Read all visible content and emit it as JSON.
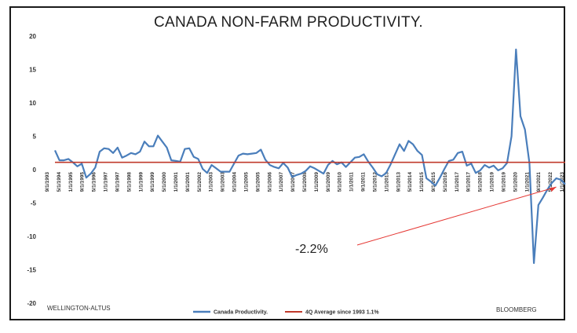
{
  "chart_data": {
    "type": "line",
    "title": "CANADA NON-FARM PRODUCTIVITY.",
    "ylim": [
      -20,
      20
    ],
    "yticks": [
      "20",
      "15",
      "10",
      "5",
      "0",
      "-5",
      "-10",
      "-15",
      "-20"
    ],
    "x_tick_labels": [
      "9/1/1993",
      "5/1/1994",
      "1/1/1995",
      "9/1/1995",
      "5/1/1996",
      "1/1/1997",
      "9/1/1997",
      "5/1/1998",
      "1/1/1999",
      "9/1/1999",
      "5/1/2000",
      "1/1/2001",
      "9/1/2001",
      "5/1/2002",
      "1/1/2003",
      "9/1/2003",
      "5/1/2004",
      "1/1/2005",
      "9/1/2005",
      "5/1/2006",
      "1/1/2007",
      "9/1/2007",
      "5/1/2008",
      "1/1/2009",
      "9/1/2009",
      "5/1/2010",
      "1/1/2011",
      "9/1/2011",
      "5/1/2012",
      "1/1/2013",
      "9/1/2013",
      "5/1/2014",
      "1/1/2015",
      "9/1/2015",
      "5/1/2016",
      "1/1/2017",
      "9/1/2017",
      "5/1/2018",
      "1/1/2019",
      "9/1/2019",
      "5/1/2020",
      "1/1/2021",
      "9/1/2021",
      "5/1/2022",
      "1/1/2023"
    ],
    "series": [
      {
        "name": "Canada Productivity.",
        "color": "#4a7ebb",
        "values": [
          2.9,
          1.4,
          1.4,
          1.6,
          1.1,
          0.5,
          0.9,
          -1.2,
          -0.6,
          0.3,
          2.7,
          3.2,
          3.1,
          2.5,
          3.3,
          1.8,
          2.1,
          2.5,
          2.3,
          2.7,
          4.2,
          3.5,
          3.5,
          5.1,
          4.2,
          3.3,
          1.4,
          1.3,
          1.2,
          3.1,
          3.2,
          1.9,
          1.6,
          0.1,
          -0.5,
          0.7,
          0.2,
          -0.3,
          -0.3,
          -0.3,
          0.9,
          2.1,
          2.4,
          2.3,
          2.4,
          2.5,
          3.0,
          1.5,
          0.7,
          0.4,
          0.2,
          1.0,
          0.3,
          -1.1,
          -0.8,
          -0.6,
          -0.2,
          0.5,
          0.2,
          -0.2,
          -0.6,
          0.7,
          1.3,
          0.8,
          1.1,
          0.4,
          1.1,
          1.8,
          1.9,
          2.3,
          1.2,
          0.3,
          -0.7,
          -1.0,
          -0.5,
          0.8,
          2.3,
          3.8,
          2.8,
          4.3,
          3.8,
          2.8,
          2.2,
          -1.3,
          -1.8,
          -2.4,
          -1.2,
          0.1,
          1.3,
          1.5,
          2.5,
          2.7,
          0.6,
          0.9,
          -0.5,
          -0.1,
          0.7,
          0.3,
          0.6,
          -0.1,
          0.2,
          1.0,
          5.0,
          18.0,
          8.0,
          6.0,
          1.0,
          -14.0,
          -5.3,
          -4.2,
          -3.0,
          -2.0,
          -1.3,
          -1.5,
          -2.2
        ]
      },
      {
        "name": "4Q Average since 1993 1.1%",
        "color": "#c0392b",
        "constant": 1.1
      }
    ],
    "annotation": "-2.2%",
    "grid": false,
    "legend": "bottom"
  },
  "footer": {
    "left": "WELLINGTON-ALTUS",
    "right": "BLOOMBERG"
  }
}
